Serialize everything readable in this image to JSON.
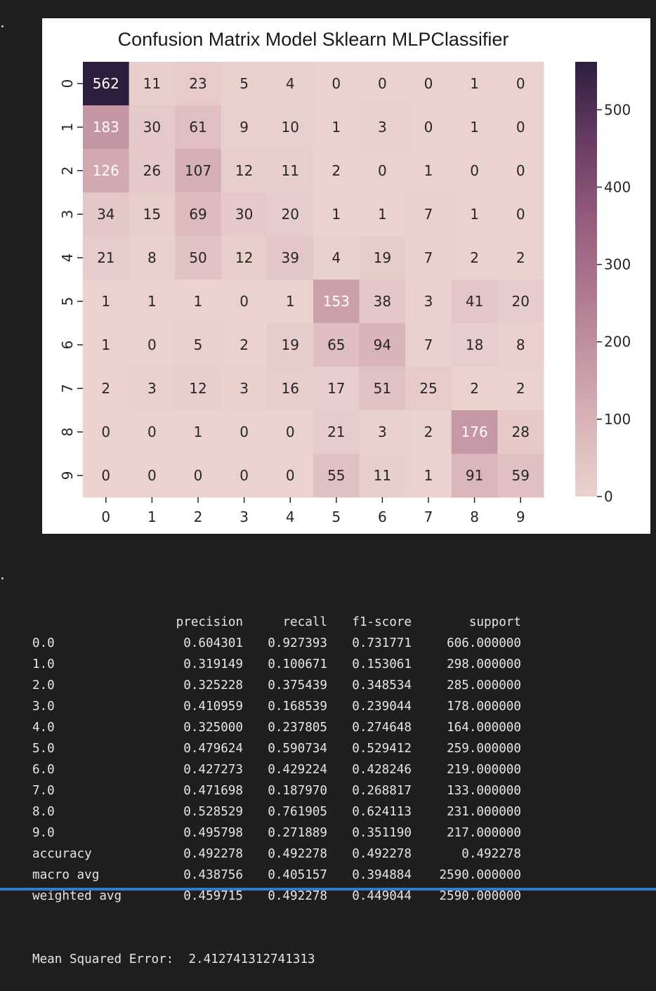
{
  "chart_data": {
    "type": "heatmap",
    "title": "Confusion Matrix Model Sklearn MLPClassifier",
    "xlabel": "",
    "ylabel": "",
    "x_categories": [
      "0",
      "1",
      "2",
      "3",
      "4",
      "5",
      "6",
      "7",
      "8",
      "9"
    ],
    "y_categories": [
      "0",
      "1",
      "2",
      "3",
      "4",
      "5",
      "6",
      "7",
      "8",
      "9"
    ],
    "values": [
      [
        562,
        11,
        23,
        5,
        4,
        0,
        0,
        0,
        1,
        0
      ],
      [
        183,
        30,
        61,
        9,
        10,
        1,
        3,
        0,
        1,
        0
      ],
      [
        126,
        26,
        107,
        12,
        11,
        2,
        0,
        1,
        0,
        0
      ],
      [
        34,
        15,
        69,
        30,
        20,
        1,
        1,
        7,
        1,
        0
      ],
      [
        21,
        8,
        50,
        12,
        39,
        4,
        19,
        7,
        2,
        2
      ],
      [
        1,
        1,
        1,
        0,
        1,
        153,
        38,
        3,
        41,
        20
      ],
      [
        1,
        0,
        5,
        2,
        19,
        65,
        94,
        7,
        18,
        8
      ],
      [
        2,
        3,
        12,
        3,
        16,
        17,
        51,
        25,
        2,
        2
      ],
      [
        0,
        0,
        1,
        0,
        0,
        21,
        3,
        2,
        176,
        28
      ],
      [
        0,
        0,
        0,
        0,
        0,
        55,
        11,
        1,
        91,
        59
      ]
    ],
    "colorbar": {
      "range": [
        0,
        562
      ],
      "ticks": [
        0,
        100,
        200,
        300,
        400,
        500
      ],
      "colors": [
        "#ead3cf",
        "#d6aeb4",
        "#b98698",
        "#9c6282",
        "#6f3f66",
        "#2d1e3e"
      ]
    },
    "grid": false
  },
  "report": {
    "header": [
      "",
      "precision",
      "recall",
      "f1-score",
      "support"
    ],
    "rows": [
      [
        "0.0",
        "0.604301",
        "0.927393",
        "0.731771",
        "606.000000"
      ],
      [
        "1.0",
        "0.319149",
        "0.100671",
        "0.153061",
        "298.000000"
      ],
      [
        "2.0",
        "0.325228",
        "0.375439",
        "0.348534",
        "285.000000"
      ],
      [
        "3.0",
        "0.410959",
        "0.168539",
        "0.239044",
        "178.000000"
      ],
      [
        "4.0",
        "0.325000",
        "0.237805",
        "0.274648",
        "164.000000"
      ],
      [
        "5.0",
        "0.479624",
        "0.590734",
        "0.529412",
        "259.000000"
      ],
      [
        "6.0",
        "0.427273",
        "0.429224",
        "0.428246",
        "219.000000"
      ],
      [
        "7.0",
        "0.471698",
        "0.187970",
        "0.268817",
        "133.000000"
      ],
      [
        "8.0",
        "0.528529",
        "0.761905",
        "0.624113",
        "231.000000"
      ],
      [
        "9.0",
        "0.495798",
        "0.271889",
        "0.351190",
        "217.000000"
      ],
      [
        "accuracy",
        "0.492278",
        "0.492278",
        "0.492278",
        "0.492278"
      ],
      [
        "macro avg",
        "0.438756",
        "0.405157",
        "0.394884",
        "2590.000000"
      ],
      [
        "weighted avg",
        "0.459715",
        "0.492278",
        "0.449044",
        "2590.000000"
      ]
    ],
    "mse_label": "Mean Squared Error:",
    "mse_value": "2.412741312741313"
  },
  "theme": {
    "background": "#1e1e1e",
    "text": "#e6e6e6",
    "accent_bar": "#2f7dd0"
  }
}
